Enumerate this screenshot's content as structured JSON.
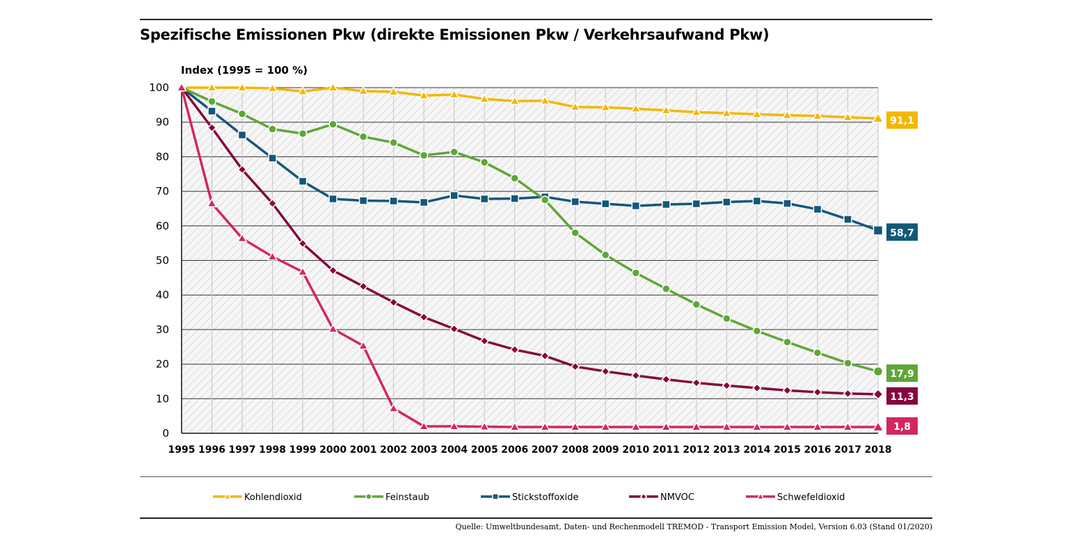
{
  "header": {
    "title": "Spezifische Emissionen Pkw (direkte Emissionen Pkw / Verkehrsaufwand Pkw)"
  },
  "footer": {
    "source": "Quelle: Umweltbundesamt, Daten- und Rechenmodell TREMOD - Transport Emission Model, Version 6.03 (Stand 01/2020)"
  },
  "chart_data": {
    "type": "line",
    "ylabel": "Index (1995 = 100 %)",
    "ylim": [
      0,
      100
    ],
    "yticks": [
      0,
      10,
      20,
      30,
      40,
      50,
      60,
      70,
      80,
      90,
      100
    ],
    "x": [
      1995,
      1996,
      1997,
      1998,
      1999,
      2000,
      2001,
      2002,
      2003,
      2004,
      2005,
      2006,
      2007,
      2008,
      2009,
      2010,
      2011,
      2012,
      2013,
      2014,
      2015,
      2016,
      2017,
      2018
    ],
    "grid": true,
    "legend_position": "bottom",
    "series": [
      {
        "name": "Kohlendioxid",
        "color": "#f2b700",
        "marker": "triangle",
        "end_label": "91,1",
        "values": [
          100,
          100,
          100,
          99.8,
          98.9,
          100,
          99.0,
          98.8,
          97.7,
          98.0,
          96.7,
          96.1,
          96.2,
          94.4,
          94.3,
          93.9,
          93.4,
          92.9,
          92.6,
          92.3,
          92.0,
          91.8,
          91.4,
          91.1
        ]
      },
      {
        "name": "Feinstaub",
        "color": "#5fa637",
        "marker": "circle",
        "end_label": "17,9",
        "values": [
          100,
          96.0,
          92.4,
          88.0,
          86.7,
          89.4,
          85.8,
          84.1,
          80.4,
          81.4,
          78.4,
          73.8,
          67.5,
          58.0,
          51.6,
          46.4,
          41.8,
          37.3,
          33.2,
          29.6,
          26.4,
          23.3,
          20.3,
          17.9
        ]
      },
      {
        "name": "Stickstoffoxide",
        "color": "#13577a",
        "marker": "square",
        "end_label": "58,7",
        "values": [
          100,
          93.2,
          86.3,
          79.6,
          72.9,
          67.8,
          67.3,
          67.2,
          66.8,
          68.8,
          67.8,
          67.9,
          68.4,
          67.0,
          66.4,
          65.8,
          66.2,
          66.4,
          66.9,
          67.2,
          66.5,
          64.8,
          61.9,
          58.7
        ]
      },
      {
        "name": "NMVOC",
        "color": "#84083e",
        "marker": "diamond",
        "end_label": "11,3",
        "values": [
          100,
          88.4,
          76.3,
          66.5,
          54.9,
          47.1,
          42.5,
          37.9,
          33.6,
          30.2,
          26.7,
          24.2,
          22.4,
          19.3,
          17.9,
          16.7,
          15.6,
          14.6,
          13.8,
          13.1,
          12.4,
          11.9,
          11.5,
          11.3
        ]
      },
      {
        "name": "Schwefeldioxid",
        "color": "#d1275f",
        "marker": "triangle",
        "end_label": "1,8",
        "values": [
          100,
          66.5,
          56.4,
          51.1,
          46.7,
          30.2,
          25.3,
          7.2,
          2.0,
          2.0,
          1.9,
          1.8,
          1.8,
          1.8,
          1.8,
          1.8,
          1.8,
          1.8,
          1.8,
          1.8,
          1.8,
          1.8,
          1.8,
          1.8
        ]
      }
    ]
  }
}
